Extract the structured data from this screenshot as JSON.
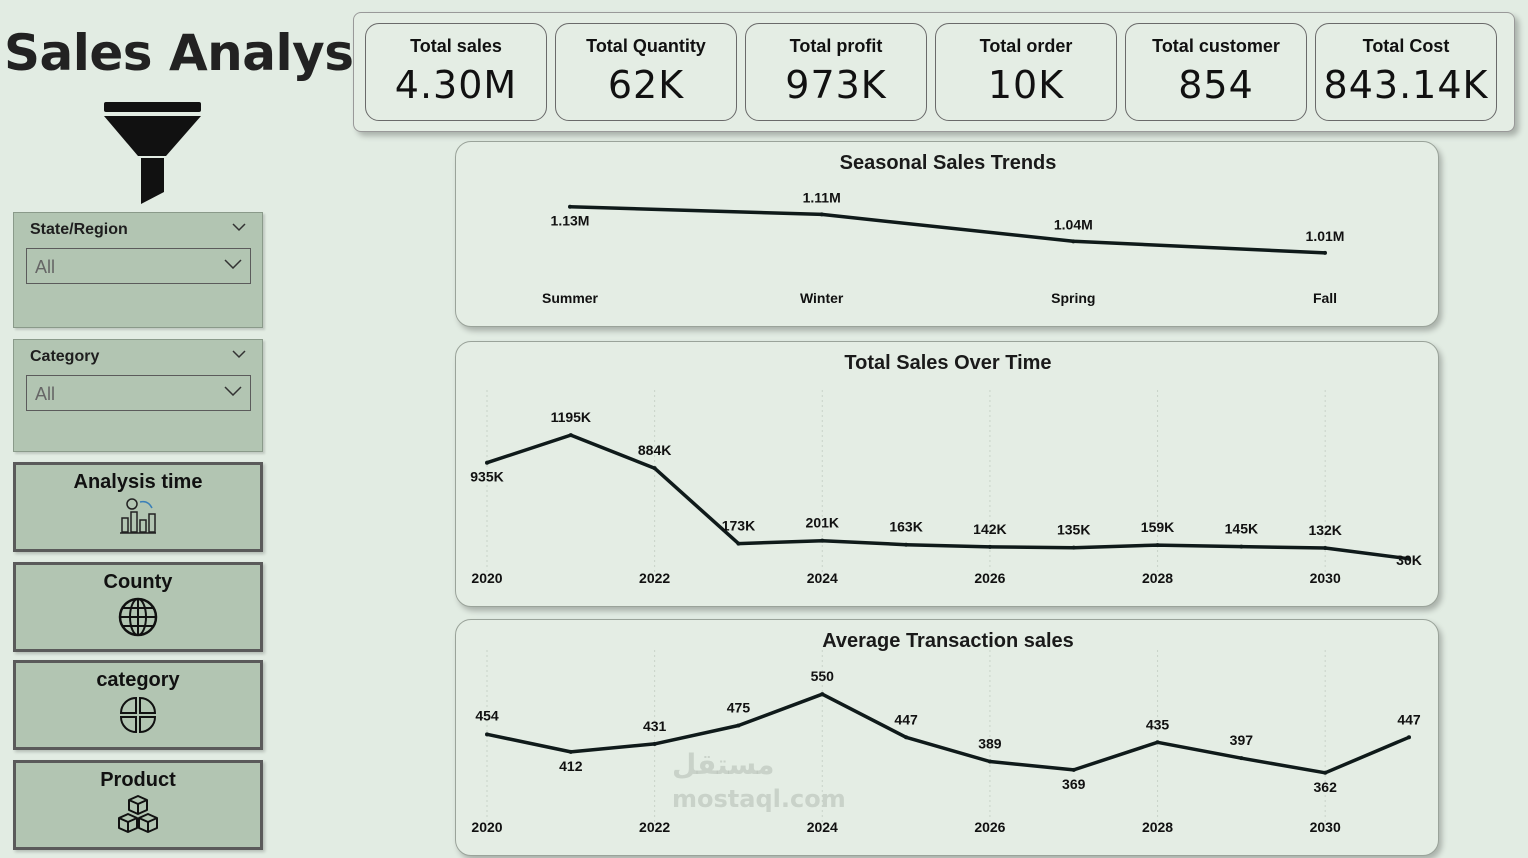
{
  "page": {
    "title": "Sales Analysis"
  },
  "filters": {
    "state": {
      "label": "State/Region",
      "value": "All"
    },
    "category": {
      "label": "Category",
      "value": "All"
    }
  },
  "nav": {
    "analysis_time": "Analysis time",
    "county": "County",
    "category": "category",
    "product": "Product"
  },
  "kpis": [
    {
      "label": "Total sales",
      "value": "4.30M"
    },
    {
      "label": "Total Quantity",
      "value": "62K"
    },
    {
      "label": "Total profit",
      "value": "973K"
    },
    {
      "label": "Total order",
      "value": "10K"
    },
    {
      "label": "Total customer",
      "value": "854"
    },
    {
      "label": "Total Cost",
      "value": "843.14K"
    }
  ],
  "watermark": {
    "arabic": "مستقل",
    "url": "mostaql.com"
  },
  "colors": {
    "background": "#e2ece3",
    "panel": "#b2c5b2",
    "line": "#0f1a1a"
  },
  "chart_data": [
    {
      "type": "line",
      "title": "Seasonal Sales Trends",
      "categories": [
        "Summer",
        "Winter",
        "Spring",
        "Fall"
      ],
      "values": [
        1.13,
        1.11,
        1.04,
        1.01
      ],
      "labels": [
        "1.13M",
        "1.11M",
        "1.04M",
        "1.01M"
      ],
      "unit": "M",
      "ylim": [
        0.95,
        1.15
      ]
    },
    {
      "type": "line",
      "title": "Total Sales Over Time",
      "x": [
        2020,
        2021,
        2022,
        2023,
        2024,
        2025,
        2026,
        2027,
        2028,
        2029,
        2030,
        2031
      ],
      "values": [
        935,
        1195,
        884,
        173,
        201,
        163,
        142,
        135,
        159,
        145,
        132,
        30
      ],
      "labels": [
        "935K",
        "1195K",
        "884K",
        "173K",
        "201K",
        "163K",
        "142K",
        "135K",
        "159K",
        "145K",
        "132K",
        "30K"
      ],
      "tick_labels": [
        "2020",
        "2022",
        "2024",
        "2026",
        "2028",
        "2030"
      ],
      "unit": "K",
      "ylim": [
        0,
        1300
      ]
    },
    {
      "type": "line",
      "title": "Average Transaction sales",
      "x": [
        2020,
        2021,
        2022,
        2023,
        2024,
        2025,
        2026,
        2027,
        2028,
        2029,
        2030,
        2031
      ],
      "values": [
        454,
        412,
        431,
        475,
        550,
        447,
        389,
        369,
        435,
        397,
        362,
        447
      ],
      "labels": [
        "454",
        "412",
        "431",
        "475",
        "550",
        "447",
        "389",
        "369",
        "435",
        "397",
        "362",
        "447"
      ],
      "tick_labels": [
        "2020",
        "2022",
        "2024",
        "2026",
        "2028",
        "2030"
      ],
      "ylim": [
        340,
        560
      ]
    }
  ]
}
